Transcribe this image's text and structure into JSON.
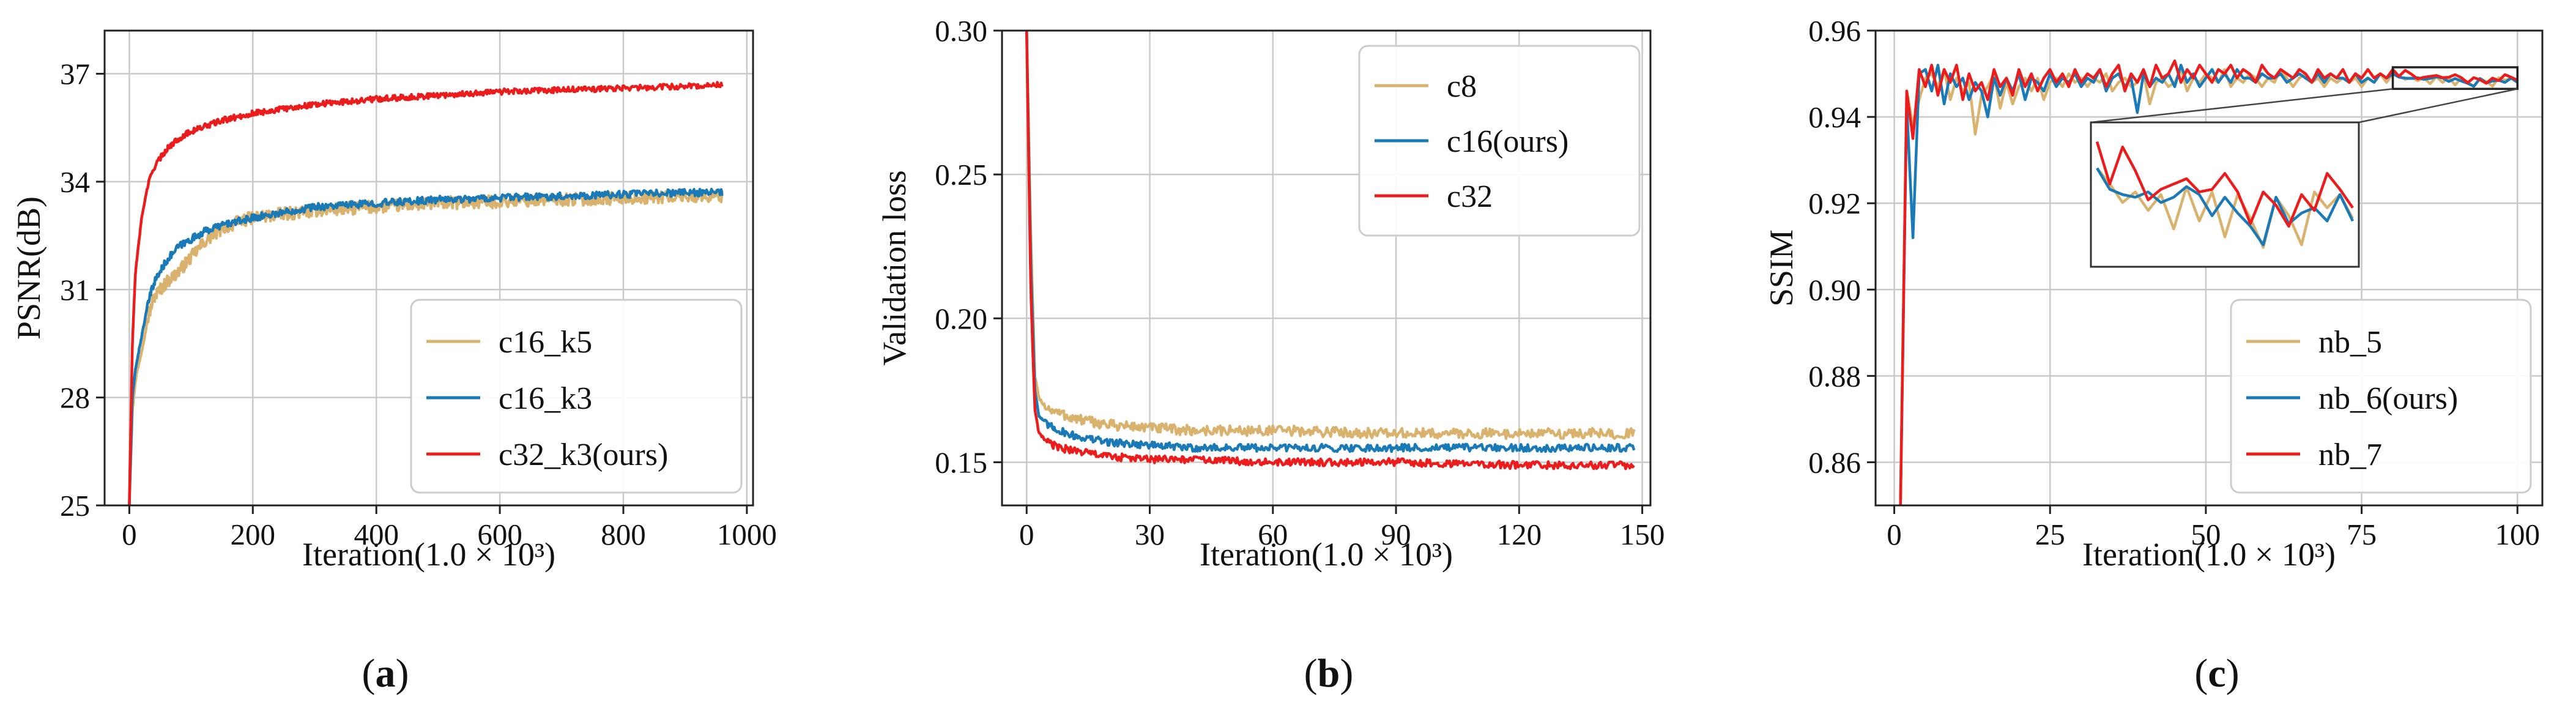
{
  "colors": {
    "tan": "#d9b26e",
    "blue": "#1a7ab8",
    "red": "#ec1c1c"
  },
  "chart_data": [
    {
      "type": "line",
      "caption_open": "(",
      "caption_letter": "a",
      "caption_close": ")",
      "ylabel": "PSNR(dB)",
      "xlabel": "Iteration(1.0 × 10³)",
      "xlim": [
        -40,
        1010
      ],
      "ylim": [
        25,
        38.2
      ],
      "xticks": [
        0,
        200,
        400,
        600,
        800,
        1000
      ],
      "xtick_labels": [
        "0",
        "200",
        "400",
        "600",
        "800",
        "1000"
      ],
      "yticks": [
        25,
        28,
        31,
        34,
        37
      ],
      "ytick_labels": [
        "25",
        "28",
        "31",
        "34",
        "37"
      ],
      "legend": {
        "position": "lower-right",
        "labels": [
          "c16_k5",
          "c16_k3",
          "c32_k3(ours)"
        ]
      },
      "series": [
        {
          "name": "c16_k5",
          "color": "tan",
          "x": [
            0,
            5,
            10,
            20,
            30,
            40,
            60,
            80,
            100,
            120,
            150,
            180,
            200,
            250,
            300,
            400,
            500,
            600,
            700,
            800,
            900,
            960
          ],
          "y": [
            25,
            27.6,
            28.5,
            29.3,
            30.2,
            30.8,
            31.2,
            31.5,
            31.9,
            32.3,
            32.7,
            32.9,
            33.0,
            33.1,
            33.2,
            33.3,
            33.4,
            33.45,
            33.5,
            33.55,
            33.6,
            33.6
          ],
          "noise": 0.18
        },
        {
          "name": "c16_k3",
          "color": "blue",
          "x": [
            0,
            5,
            10,
            20,
            30,
            40,
            60,
            80,
            100,
            120,
            150,
            180,
            200,
            250,
            300,
            400,
            500,
            600,
            700,
            800,
            900,
            960
          ],
          "y": [
            25,
            28.0,
            28.8,
            29.7,
            30.6,
            31.2,
            31.8,
            32.2,
            32.4,
            32.6,
            32.8,
            32.9,
            33.0,
            33.15,
            33.3,
            33.4,
            33.5,
            33.55,
            33.6,
            33.65,
            33.7,
            33.7
          ],
          "noise": 0.1
        },
        {
          "name": "c32_k3(ours)",
          "color": "red",
          "x": [
            0,
            5,
            10,
            20,
            30,
            40,
            60,
            80,
            100,
            150,
            200,
            300,
            400,
            500,
            600,
            700,
            800,
            900,
            960
          ],
          "y": [
            25,
            29.5,
            31.5,
            33.0,
            33.9,
            34.4,
            34.9,
            35.2,
            35.4,
            35.7,
            35.9,
            36.15,
            36.3,
            36.4,
            36.5,
            36.55,
            36.6,
            36.65,
            36.7
          ],
          "noise": 0.08
        }
      ]
    },
    {
      "type": "line",
      "caption_open": "(",
      "caption_letter": "b",
      "caption_close": ")",
      "ylabel": "Validation loss",
      "xlabel": "Iteration(1.0 × 10³)",
      "xlim": [
        -6,
        152
      ],
      "ylim": [
        0.135,
        0.3
      ],
      "xticks": [
        0,
        30,
        60,
        90,
        120,
        150
      ],
      "xtick_labels": [
        "0",
        "30",
        "60",
        "90",
        "120",
        "150"
      ],
      "yticks": [
        0.15,
        0.2,
        0.25,
        0.3
      ],
      "ytick_labels": [
        "0.15",
        "0.20",
        "0.25",
        "0.30"
      ],
      "legend": {
        "position": "top-right",
        "labels": [
          "c8",
          "c16(ours)",
          "c32"
        ]
      },
      "series": [
        {
          "name": "c8",
          "color": "tan",
          "x": [
            0,
            1,
            2,
            3,
            5,
            8,
            12,
            20,
            30,
            40,
            60,
            90,
            120,
            148
          ],
          "y": [
            0.3,
            0.23,
            0.18,
            0.172,
            0.169,
            0.167,
            0.165,
            0.163,
            0.162,
            0.161,
            0.161,
            0.16,
            0.16,
            0.16
          ],
          "noise": 0.0018
        },
        {
          "name": "c16(ours)",
          "color": "blue",
          "x": [
            0,
            1,
            2,
            3,
            5,
            8,
            12,
            20,
            30,
            40,
            60,
            90,
            120,
            148
          ],
          "y": [
            0.3,
            0.22,
            0.175,
            0.166,
            0.163,
            0.161,
            0.159,
            0.157,
            0.156,
            0.155,
            0.155,
            0.155,
            0.155,
            0.155
          ],
          "noise": 0.0013
        },
        {
          "name": "c32",
          "color": "red",
          "x": [
            0,
            1,
            2,
            3,
            5,
            8,
            12,
            20,
            30,
            40,
            60,
            90,
            120,
            148
          ],
          "y": [
            0.3,
            0.21,
            0.168,
            0.16,
            0.157,
            0.155,
            0.154,
            0.152,
            0.151,
            0.151,
            0.15,
            0.15,
            0.149,
            0.149
          ],
          "noise": 0.0013
        }
      ]
    },
    {
      "type": "line",
      "caption_open": "(",
      "caption_letter": "c",
      "caption_close": ")",
      "ylabel": "SSIM",
      "xlabel": "Iteration(1.0 × 10³)",
      "xlim": [
        -3,
        104
      ],
      "ylim": [
        0.85,
        0.96
      ],
      "xticks": [
        0,
        25,
        50,
        75,
        100
      ],
      "xtick_labels": [
        "0",
        "25",
        "50",
        "75",
        "100"
      ],
      "yticks": [
        0.86,
        0.88,
        0.9,
        0.92,
        0.94,
        0.96
      ],
      "ytick_labels": [
        "0.86",
        "0.88",
        "0.90",
        "0.92",
        "0.94",
        "0.96"
      ],
      "legend": {
        "position": "lower-right",
        "labels": [
          "nb_5",
          "nb_6(ours)",
          "nb_7"
        ]
      },
      "inset": {
        "x_range": [
          80,
          100
        ],
        "y_range": [
          0.9465,
          0.9515
        ]
      },
      "series": [
        {
          "name": "nb_5",
          "color": "tan",
          "x": [
            1,
            2,
            3,
            4,
            5,
            6,
            7,
            8,
            9,
            10,
            11,
            12,
            13,
            14,
            15,
            16,
            17,
            18,
            19,
            20,
            21,
            22,
            23,
            24,
            25,
            26,
            27,
            28,
            29,
            30,
            31,
            32,
            33,
            34,
            35,
            36,
            37,
            38,
            39,
            40,
            41,
            42,
            43,
            44,
            45,
            46,
            47,
            48,
            49,
            50,
            51,
            52,
            53,
            54,
            55,
            56,
            57,
            58,
            59,
            60,
            61,
            62,
            63,
            64,
            65,
            66,
            67,
            68,
            69,
            70,
            71,
            72,
            73,
            74,
            75,
            76,
            77,
            78,
            79,
            80,
            81,
            82,
            83,
            84,
            85,
            86,
            87,
            88,
            89,
            90,
            91,
            92,
            93,
            94,
            95,
            96,
            97,
            98,
            99,
            100
          ],
          "y": [
            0.85,
            0.946,
            0.938,
            0.944,
            0.949,
            0.95,
            0.947,
            0.951,
            0.944,
            0.949,
            0.946,
            0.948,
            0.936,
            0.945,
            0.947,
            0.95,
            0.942,
            0.948,
            0.943,
            0.947,
            0.949,
            0.946,
            0.949,
            0.944,
            0.948,
            0.949,
            0.947,
            0.95,
            0.948,
            0.949,
            0.947,
            0.949,
            0.948,
            0.95,
            0.946,
            0.948,
            0.949,
            0.947,
            0.948,
            0.95,
            0.943,
            0.948,
            0.949,
            0.947,
            0.948,
            0.951,
            0.946,
            0.949,
            0.948,
            0.95,
            0.949,
            0.948,
            0.951,
            0.947,
            0.949,
            0.948,
            0.95,
            0.949,
            0.947,
            0.949,
            0.948,
            0.951,
            0.949,
            0.947,
            0.949,
            0.95,
            0.948,
            0.949,
            0.947,
            0.949,
            0.948,
            0.949,
            0.948,
            0.949,
            0.947,
            0.949,
            0.948,
            0.95,
            0.948,
            0.95,
            0.9494,
            0.9487,
            0.9491,
            0.9484,
            0.949,
            0.9477,
            0.9493,
            0.948,
            0.9491,
            0.9474,
            0.949,
            0.9481,
            0.947,
            0.9489,
            0.9482,
            0.9471,
            0.9491,
            0.9485,
            0.949,
            0.9481
          ],
          "noise": 0
        },
        {
          "name": "nb_6(ours)",
          "color": "blue",
          "x": [
            1,
            2,
            3,
            4,
            5,
            6,
            7,
            8,
            9,
            10,
            11,
            12,
            13,
            14,
            15,
            16,
            17,
            18,
            19,
            20,
            21,
            22,
            23,
            24,
            25,
            26,
            27,
            28,
            29,
            30,
            31,
            32,
            33,
            34,
            35,
            36,
            37,
            38,
            39,
            40,
            41,
            42,
            43,
            44,
            45,
            46,
            47,
            48,
            49,
            50,
            51,
            52,
            53,
            54,
            55,
            56,
            57,
            58,
            59,
            60,
            61,
            62,
            63,
            64,
            65,
            66,
            67,
            68,
            69,
            70,
            71,
            72,
            73,
            74,
            75,
            76,
            77,
            78,
            79,
            80,
            81,
            82,
            83,
            84,
            85,
            86,
            87,
            88,
            89,
            90,
            91,
            92,
            93,
            94,
            95,
            96,
            97,
            98,
            99,
            100
          ],
          "y": [
            0.85,
            0.943,
            0.912,
            0.95,
            0.951,
            0.946,
            0.952,
            0.943,
            0.95,
            0.947,
            0.949,
            0.944,
            0.948,
            0.946,
            0.94,
            0.949,
            0.945,
            0.949,
            0.946,
            0.95,
            0.944,
            0.949,
            0.948,
            0.946,
            0.95,
            0.947,
            0.949,
            0.948,
            0.95,
            0.947,
            0.949,
            0.948,
            0.951,
            0.946,
            0.949,
            0.95,
            0.947,
            0.949,
            0.941,
            0.95,
            0.947,
            0.949,
            0.948,
            0.95,
            0.947,
            0.952,
            0.948,
            0.95,
            0.947,
            0.949,
            0.951,
            0.948,
            0.95,
            0.948,
            0.951,
            0.949,
            0.949,
            0.948,
            0.95,
            0.949,
            0.949,
            0.95,
            0.948,
            0.949,
            0.95,
            0.949,
            0.948,
            0.95,
            0.948,
            0.95,
            0.949,
            0.949,
            0.948,
            0.95,
            0.948,
            0.949,
            0.948,
            0.95,
            0.949,
            0.95,
            0.9492,
            0.949,
            0.9489,
            0.9491,
            0.9487,
            0.9489,
            0.9493,
            0.949,
            0.9482,
            0.9489,
            0.9483,
            0.9478,
            0.9471,
            0.9489,
            0.9479,
            0.9483,
            0.9485,
            0.948,
            0.949,
            0.948
          ],
          "noise": 0
        },
        {
          "name": "nb_7",
          "color": "red",
          "x": [
            1,
            2,
            3,
            4,
            5,
            6,
            7,
            8,
            9,
            10,
            11,
            12,
            13,
            14,
            15,
            16,
            17,
            18,
            19,
            20,
            21,
            22,
            23,
            24,
            25,
            26,
            27,
            28,
            29,
            30,
            31,
            32,
            33,
            34,
            35,
            36,
            37,
            38,
            39,
            40,
            41,
            42,
            43,
            44,
            45,
            46,
            47,
            48,
            49,
            50,
            51,
            52,
            53,
            54,
            55,
            56,
            57,
            58,
            59,
            60,
            61,
            62,
            63,
            64,
            65,
            66,
            67,
            68,
            69,
            70,
            71,
            72,
            73,
            74,
            75,
            76,
            77,
            78,
            79,
            80,
            81,
            82,
            83,
            84,
            85,
            86,
            87,
            88,
            89,
            90,
            91,
            92,
            93,
            94,
            95,
            96,
            97,
            98,
            99,
            100
          ],
          "y": [
            0.85,
            0.946,
            0.935,
            0.951,
            0.947,
            0.952,
            0.945,
            0.951,
            0.948,
            0.952,
            0.944,
            0.95,
            0.946,
            0.948,
            0.944,
            0.951,
            0.947,
            0.949,
            0.945,
            0.951,
            0.947,
            0.95,
            0.946,
            0.949,
            0.951,
            0.948,
            0.95,
            0.947,
            0.951,
            0.948,
            0.95,
            0.949,
            0.951,
            0.947,
            0.95,
            0.952,
            0.946,
            0.95,
            0.948,
            0.951,
            0.947,
            0.952,
            0.949,
            0.95,
            0.953,
            0.948,
            0.951,
            0.949,
            0.952,
            0.95,
            0.948,
            0.951,
            0.95,
            0.952,
            0.949,
            0.951,
            0.95,
            0.948,
            0.952,
            0.95,
            0.949,
            0.951,
            0.95,
            0.949,
            0.951,
            0.95,
            0.948,
            0.951,
            0.949,
            0.95,
            0.949,
            0.951,
            0.948,
            0.95,
            0.949,
            0.951,
            0.949,
            0.95,
            0.949,
            0.951,
            0.9494,
            0.9508,
            0.9499,
            0.9488,
            0.9492,
            0.9494,
            0.9496,
            0.9491,
            0.9492,
            0.9498,
            0.9491,
            0.9479,
            0.9491,
            0.9486,
            0.9478,
            0.949,
            0.9484,
            0.9498,
            0.9492,
            0.9485
          ],
          "noise": 0
        }
      ]
    }
  ]
}
